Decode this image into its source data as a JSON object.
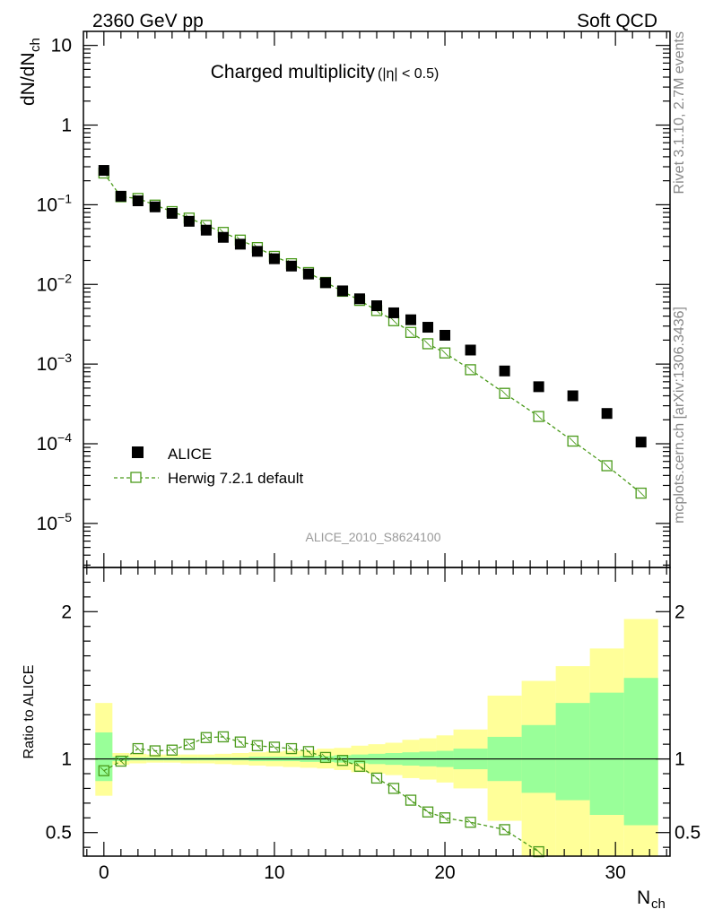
{
  "header": {
    "left": "2360 GeV pp",
    "right": "Soft QCD"
  },
  "side_labels": {
    "rivet": "Rivet 3.1.10,  2.7M events",
    "mcplots": "mcplots.cern.ch [arXiv:1306.3436]"
  },
  "watermark": "ALICE_2010_S8624100",
  "chart_data": [
    {
      "type": "scatter",
      "title_main": "Charged multiplicity",
      "title_cut": "(|η| < 0.5)",
      "ylabel": "dN/dN",
      "ylabel_sub": "ch",
      "yscale": "log",
      "ylim": [
        2.8e-06,
        15
      ],
      "xlim": [
        -1.2,
        33.2
      ],
      "y_tick_labels": [
        {
          "value": 10,
          "base": "10",
          "exp": ""
        },
        {
          "value": 1,
          "base": "1",
          "exp": ""
        },
        {
          "value": 0.1,
          "base": "10",
          "exp": "−1"
        },
        {
          "value": 0.01,
          "base": "10",
          "exp": "−2"
        },
        {
          "value": 0.001,
          "base": "10",
          "exp": "−3"
        },
        {
          "value": 0.0001,
          "base": "10",
          "exp": "−4"
        },
        {
          "value": 1e-05,
          "base": "10",
          "exp": "−5"
        }
      ],
      "legend": {
        "position": "lower-left",
        "entries": [
          "ALICE",
          "Herwig 7.2.1 default"
        ]
      },
      "series": [
        {
          "name": "ALICE",
          "color": "#000000",
          "marker": "filled-square",
          "x": [
            0,
            1,
            2,
            3,
            4,
            5,
            6,
            7,
            8,
            9,
            10,
            11,
            12,
            13,
            14,
            15,
            16,
            17,
            18,
            19,
            20,
            21.5,
            23.5,
            25.5,
            27.5,
            29.5,
            31.5
          ],
          "y": [
            0.27,
            0.128,
            0.112,
            0.094,
            0.078,
            0.062,
            0.048,
            0.039,
            0.032,
            0.026,
            0.021,
            0.017,
            0.0135,
            0.0105,
            0.0083,
            0.0066,
            0.0054,
            0.0044,
            0.0036,
            0.0029,
            0.0023,
            0.0015,
            0.00082,
            0.00052,
            0.0004,
            0.00024,
            0.000105
          ]
        },
        {
          "name": "Herwig 7.2.1 default",
          "color": "#4a9a1a",
          "marker": "open-square-dashed",
          "x": [
            0,
            1,
            2,
            3,
            4,
            5,
            6,
            7,
            8,
            9,
            10,
            11,
            12,
            13,
            14,
            15,
            16,
            17,
            18,
            19,
            20,
            21.5,
            23.5,
            25.5,
            27.5,
            29.5,
            31.5
          ],
          "y": [
            0.25,
            0.126,
            0.12,
            0.099,
            0.082,
            0.068,
            0.055,
            0.045,
            0.036,
            0.029,
            0.0225,
            0.0182,
            0.0141,
            0.0106,
            0.0082,
            0.0063,
            0.0047,
            0.0035,
            0.0025,
            0.0018,
            0.00138,
            0.00085,
            0.00043,
            0.00022,
            0.000108,
            5.3e-05,
            2.4e-05
          ]
        }
      ]
    },
    {
      "type": "scatter",
      "ylabel": "Ratio to ALICE",
      "xlabel": "N",
      "xlabel_sub": "ch",
      "ylim": [
        0.34,
        2.3
      ],
      "xlim": [
        -1.2,
        33.2
      ],
      "x_tick_labels": [
        "0",
        "10",
        "20",
        "30"
      ],
      "x_ticks": [
        0,
        10,
        20,
        30
      ],
      "y_tick_labels": [
        "0.5",
        "1",
        "2"
      ],
      "y_ticks": [
        0.5,
        1,
        2
      ],
      "bands": {
        "x_edges": [
          -0.5,
          0.5,
          1.5,
          2.5,
          3.5,
          4.5,
          5.5,
          6.5,
          7.5,
          8.5,
          9.5,
          10.5,
          11.5,
          12.5,
          13.5,
          14.5,
          15.5,
          16.5,
          17.5,
          18.5,
          19.5,
          20.5,
          22.5,
          24.5,
          26.5,
          28.5,
          30.5,
          32.5
        ],
        "stat_color": "#99ff99",
        "total_color": "#ffff99",
        "total_lo": [
          0.75,
          0.96,
          0.97,
          0.975,
          0.975,
          0.97,
          0.97,
          0.965,
          0.96,
          0.955,
          0.95,
          0.945,
          0.94,
          0.935,
          0.925,
          0.91,
          0.9,
          0.89,
          0.87,
          0.86,
          0.84,
          0.8,
          0.58,
          0.2,
          0.2,
          0.2,
          0.2
        ],
        "total_hi": [
          1.38,
          1.04,
          1.035,
          1.03,
          1.03,
          1.03,
          1.03,
          1.035,
          1.04,
          1.045,
          1.05,
          1.055,
          1.06,
          1.07,
          1.075,
          1.09,
          1.1,
          1.11,
          1.13,
          1.14,
          1.16,
          1.2,
          1.43,
          1.53,
          1.63,
          1.75,
          1.95
        ],
        "stat_lo": [
          0.85,
          0.985,
          0.99,
          0.99,
          0.99,
          0.99,
          0.99,
          0.99,
          0.99,
          0.985,
          0.985,
          0.985,
          0.98,
          0.98,
          0.975,
          0.97,
          0.965,
          0.96,
          0.955,
          0.95,
          0.945,
          0.93,
          0.85,
          0.77,
          0.72,
          0.62,
          0.55
        ],
        "stat_hi": [
          1.18,
          1.015,
          1.01,
          1.01,
          1.01,
          1.01,
          1.01,
          1.01,
          1.01,
          1.015,
          1.015,
          1.015,
          1.02,
          1.02,
          1.025,
          1.03,
          1.035,
          1.04,
          1.045,
          1.05,
          1.055,
          1.07,
          1.15,
          1.23,
          1.38,
          1.45,
          1.55
        ]
      },
      "series": [
        {
          "name": "Herwig 7.2.1 default",
          "color": "#4a9a1a",
          "x": [
            0,
            1,
            2,
            3,
            4,
            5,
            6,
            7,
            8,
            9,
            10,
            11,
            12,
            13,
            14,
            15,
            16,
            17,
            18,
            19,
            20,
            21.5,
            23.5,
            25.5
          ],
          "y": [
            0.92,
            0.985,
            1.07,
            1.055,
            1.06,
            1.1,
            1.145,
            1.15,
            1.115,
            1.09,
            1.08,
            1.07,
            1.05,
            1.01,
            0.99,
            0.95,
            0.87,
            0.8,
            0.72,
            0.64,
            0.6,
            0.57,
            0.52,
            0.37
          ]
        }
      ]
    }
  ]
}
